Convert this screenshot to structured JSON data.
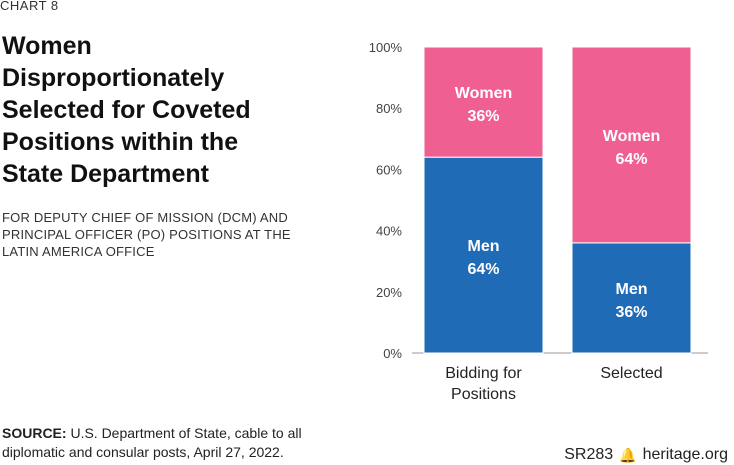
{
  "chart_number": "CHART 8",
  "title": "Women Disproportionately Selected for Coveted Positions within the State Department",
  "subtitle": "FOR DEPUTY CHIEF OF MISSION (DCM) AND PRINCIPAL OFFICER (PO) POSITIONS AT THE LATIN AMERICA OFFICE",
  "source": {
    "label": "SOURCE:",
    "text": "U.S. Department of State, cable to all diplomatic and consular posts, April 27, 2022."
  },
  "report_id": "SR283",
  "site": "heritage.org",
  "colors": {
    "men": "#1f6bb5",
    "women": "#ef5f92"
  },
  "chart_data": {
    "type": "bar",
    "stacked": true,
    "categories": [
      "Bidding for Positions",
      "Selected"
    ],
    "category_lines": [
      [
        "Bidding for",
        "Positions"
      ],
      [
        "Selected"
      ]
    ],
    "series": [
      {
        "name": "Men",
        "values": [
          64,
          36
        ]
      },
      {
        "name": "Women",
        "values": [
          36,
          64
        ]
      }
    ],
    "ylim": [
      0,
      100
    ],
    "yticks": [
      0,
      20,
      40,
      60,
      80,
      100
    ],
    "ytick_labels": [
      "0%",
      "20%",
      "40%",
      "60%",
      "80%",
      "100%"
    ],
    "value_labels": [
      [
        "64%",
        "36%"
      ],
      [
        "36%",
        "64%"
      ]
    ],
    "xlabel": "",
    "ylabel": ""
  }
}
